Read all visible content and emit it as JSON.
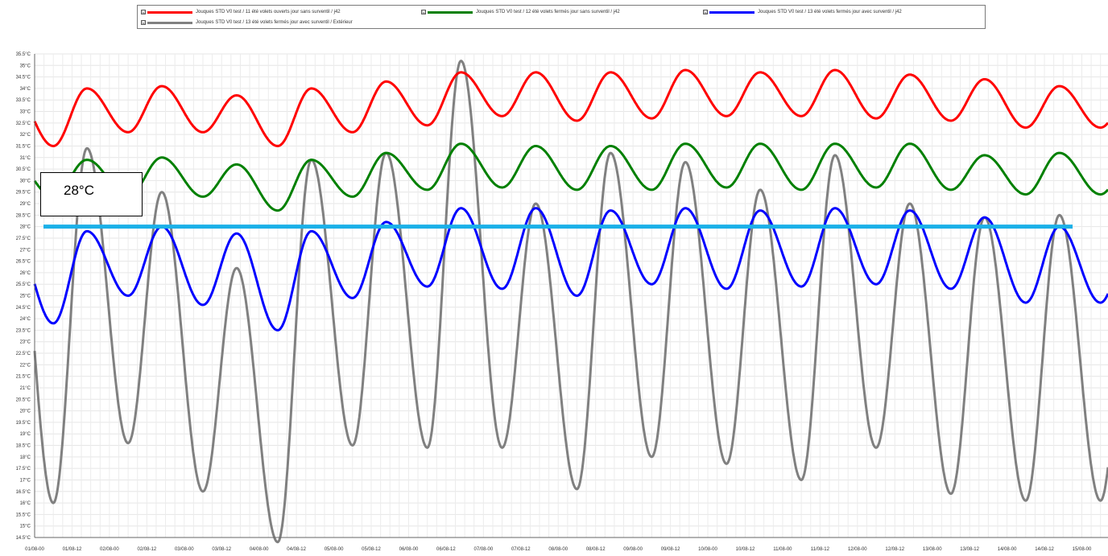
{
  "legend": {
    "items": [
      {
        "checkbox": "☑",
        "label": "Jouques STD V0 test  /  11 été volets ouverts jour sans surventil / j42",
        "color": "#ff0000"
      },
      {
        "checkbox": "☑",
        "label": "Jouques STD V0 test  /  12 été volets fermés jour sans surventil / j42",
        "color": "#008000"
      },
      {
        "checkbox": "☑",
        "label": "Jouques STD V0 test  /  13 été volets fermés jour avec surventil / j42",
        "color": "#0000ff"
      },
      {
        "checkbox": "☑",
        "label": "Jouques STD V0 test  /  13 été volets fermés jour avec surventil / Extérieur",
        "color": "#808080"
      }
    ]
  },
  "callout": {
    "text": "28°C"
  },
  "chart_data": {
    "type": "line",
    "ylim": [
      14.5,
      35.5
    ],
    "ytick_step": 0.5,
    "ytick_unit": "°C",
    "xlim_days": [
      0,
      14.35
    ],
    "xtick_labels": [
      "01/08-00",
      "01/08-12",
      "02/08-00",
      "02/08-12",
      "03/08-00",
      "03/08-12",
      "04/08-00",
      "04/08-12",
      "05/08-00",
      "05/08-12",
      "06/08-00",
      "06/08-12",
      "07/08-00",
      "07/08-12",
      "08/08-00",
      "08/08-12",
      "09/08-00",
      "09/08-12",
      "10/08-00",
      "10/08-12",
      "11/08-00",
      "11/08-12",
      "12/08-00",
      "12/08-12",
      "13/08-00",
      "13/08-12",
      "14/08-00",
      "14/08-12",
      "15/08-00"
    ],
    "reference_line": {
      "y": 28,
      "color": "#1ab0e8"
    },
    "grid": true,
    "series": [
      {
        "name": "Jouques STD V0 test  /  11 été volets ouverts jour sans surventil / j42",
        "color": "#ff0000",
        "daily": [
          {
            "min": 31.5,
            "max": 34.0
          },
          {
            "min": 32.1,
            "max": 34.1
          },
          {
            "min": 32.1,
            "max": 33.7
          },
          {
            "min": 31.5,
            "max": 34.0
          },
          {
            "min": 32.1,
            "max": 34.3
          },
          {
            "min": 32.4,
            "max": 34.7
          },
          {
            "min": 32.8,
            "max": 34.7
          },
          {
            "min": 32.6,
            "max": 34.7
          },
          {
            "min": 32.7,
            "max": 34.8
          },
          {
            "min": 32.8,
            "max": 34.7
          },
          {
            "min": 32.8,
            "max": 34.8
          },
          {
            "min": 32.7,
            "max": 34.6
          },
          {
            "min": 32.6,
            "max": 34.4
          },
          {
            "min": 32.3,
            "max": 34.1
          }
        ]
      },
      {
        "name": "Jouques STD V0 test  /  12 été volets fermés jour sans surventil / j42",
        "color": "#008000",
        "daily": [
          {
            "min": 29.3,
            "max": 30.9
          },
          {
            "min": 29.3,
            "max": 31.0
          },
          {
            "min": 29.3,
            "max": 30.7
          },
          {
            "min": 28.7,
            "max": 30.9
          },
          {
            "min": 29.3,
            "max": 31.2
          },
          {
            "min": 29.6,
            "max": 31.6
          },
          {
            "min": 29.7,
            "max": 31.5
          },
          {
            "min": 29.6,
            "max": 31.5
          },
          {
            "min": 29.6,
            "max": 31.6
          },
          {
            "min": 29.7,
            "max": 31.6
          },
          {
            "min": 29.6,
            "max": 31.6
          },
          {
            "min": 29.7,
            "max": 31.6
          },
          {
            "min": 29.6,
            "max": 31.1
          },
          {
            "min": 29.4,
            "max": 31.2
          }
        ]
      },
      {
        "name": "Jouques STD V0 test  /  13 été volets fermés jour avec surventil / j42",
        "color": "#0000ff",
        "daily": [
          {
            "min": 23.8,
            "max": 27.8
          },
          {
            "min": 25.0,
            "max": 28.0
          },
          {
            "min": 24.6,
            "max": 27.7
          },
          {
            "min": 23.5,
            "max": 27.8
          },
          {
            "min": 24.9,
            "max": 28.2
          },
          {
            "min": 25.4,
            "max": 28.8
          },
          {
            "min": 25.3,
            "max": 28.8
          },
          {
            "min": 25.0,
            "max": 28.7
          },
          {
            "min": 25.5,
            "max": 28.8
          },
          {
            "min": 25.3,
            "max": 28.7
          },
          {
            "min": 25.4,
            "max": 28.8
          },
          {
            "min": 25.5,
            "max": 28.7
          },
          {
            "min": 25.3,
            "max": 28.4
          },
          {
            "min": 24.7,
            "max": 28.0
          }
        ]
      },
      {
        "name": "Jouques STD V0 test  /  13 été volets fermés jour avec surventil / Extérieur",
        "color": "#808080",
        "daily": [
          {
            "min": 16.0,
            "max": 31.4
          },
          {
            "min": 18.6,
            "max": 29.5
          },
          {
            "min": 16.5,
            "max": 26.2
          },
          {
            "min": 14.3,
            "max": 30.9
          },
          {
            "min": 18.5,
            "max": 31.2
          },
          {
            "min": 18.4,
            "max": 35.2
          },
          {
            "min": 18.4,
            "max": 29.0
          },
          {
            "min": 16.6,
            "max": 31.2
          },
          {
            "min": 18.0,
            "max": 30.8
          },
          {
            "min": 17.7,
            "max": 29.6
          },
          {
            "min": 17.0,
            "max": 31.1
          },
          {
            "min": 18.4,
            "max": 29.0
          },
          {
            "min": 16.4,
            "max": 28.4
          },
          {
            "min": 16.1,
            "max": 28.5
          }
        ]
      }
    ]
  }
}
